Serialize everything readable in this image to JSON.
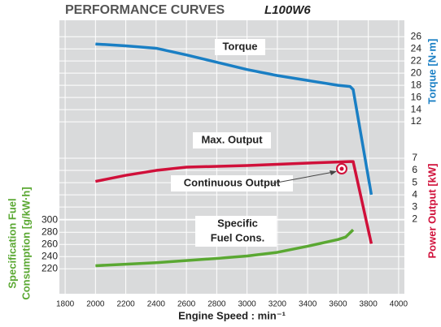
{
  "chart_data": {
    "type": "line",
    "title": "PERFORMANCE CURVES",
    "subtitle": "L100W6",
    "x_label": "Engine Speed : min⁻¹",
    "y_label": [
      "Specification Fuel",
      "Consumption [g/kW·h]"
    ],
    "y2_label": "Torque [N·m]",
    "y3_label": "Power Output [kW]",
    "xlim": [
      1762,
      4038
    ],
    "xticks": [
      1800,
      2000,
      2200,
      2400,
      2600,
      2800,
      3000,
      3200,
      3400,
      3600,
      3800,
      4000
    ],
    "ylim": [
      179,
      628
    ],
    "yticks": [
      220,
      240,
      260,
      280,
      300
    ],
    "y2lim": [
      -16.3,
      28.7
    ],
    "y2ticks": [
      12,
      14,
      16,
      18,
      20,
      22,
      24,
      26
    ],
    "y3lim": [
      -4.1,
      18.3
    ],
    "y3ticks": [
      2,
      3,
      4,
      5,
      6,
      7
    ],
    "grid": true,
    "annotations": [
      "Torque",
      "Max. Output",
      "Continuous Output",
      "Specific",
      "Fuel Cons."
    ],
    "series": [
      {
        "name": "Torque",
        "color": "#1a7fc4",
        "axis": "y2",
        "x": [
          2000,
          2200,
          2400,
          2600,
          2800,
          3000,
          3200,
          3400,
          3600,
          3680,
          3700,
          3820
        ],
        "values": [
          24.8,
          24.5,
          24.1,
          23.0,
          21.8,
          20.6,
          19.6,
          18.8,
          18.0,
          17.8,
          17.3,
          0
        ]
      },
      {
        "name": "Power Output",
        "color": "#d0103a",
        "axis": "y3",
        "x": [
          2000,
          2200,
          2400,
          2600,
          3000,
          3400,
          3680,
          3700,
          3820
        ],
        "values": [
          5.1,
          5.6,
          6.0,
          6.27,
          6.4,
          6.6,
          6.73,
          6.73,
          0
        ]
      },
      {
        "name": "Specific Fuel Cons.",
        "color": "#5aa832",
        "axis": "y",
        "x": [
          2000,
          2400,
          2800,
          3000,
          3200,
          3400,
          3600,
          3650,
          3700
        ],
        "values": [
          225,
          230,
          237,
          241,
          247,
          257,
          268,
          272,
          284
        ]
      }
    ]
  }
}
